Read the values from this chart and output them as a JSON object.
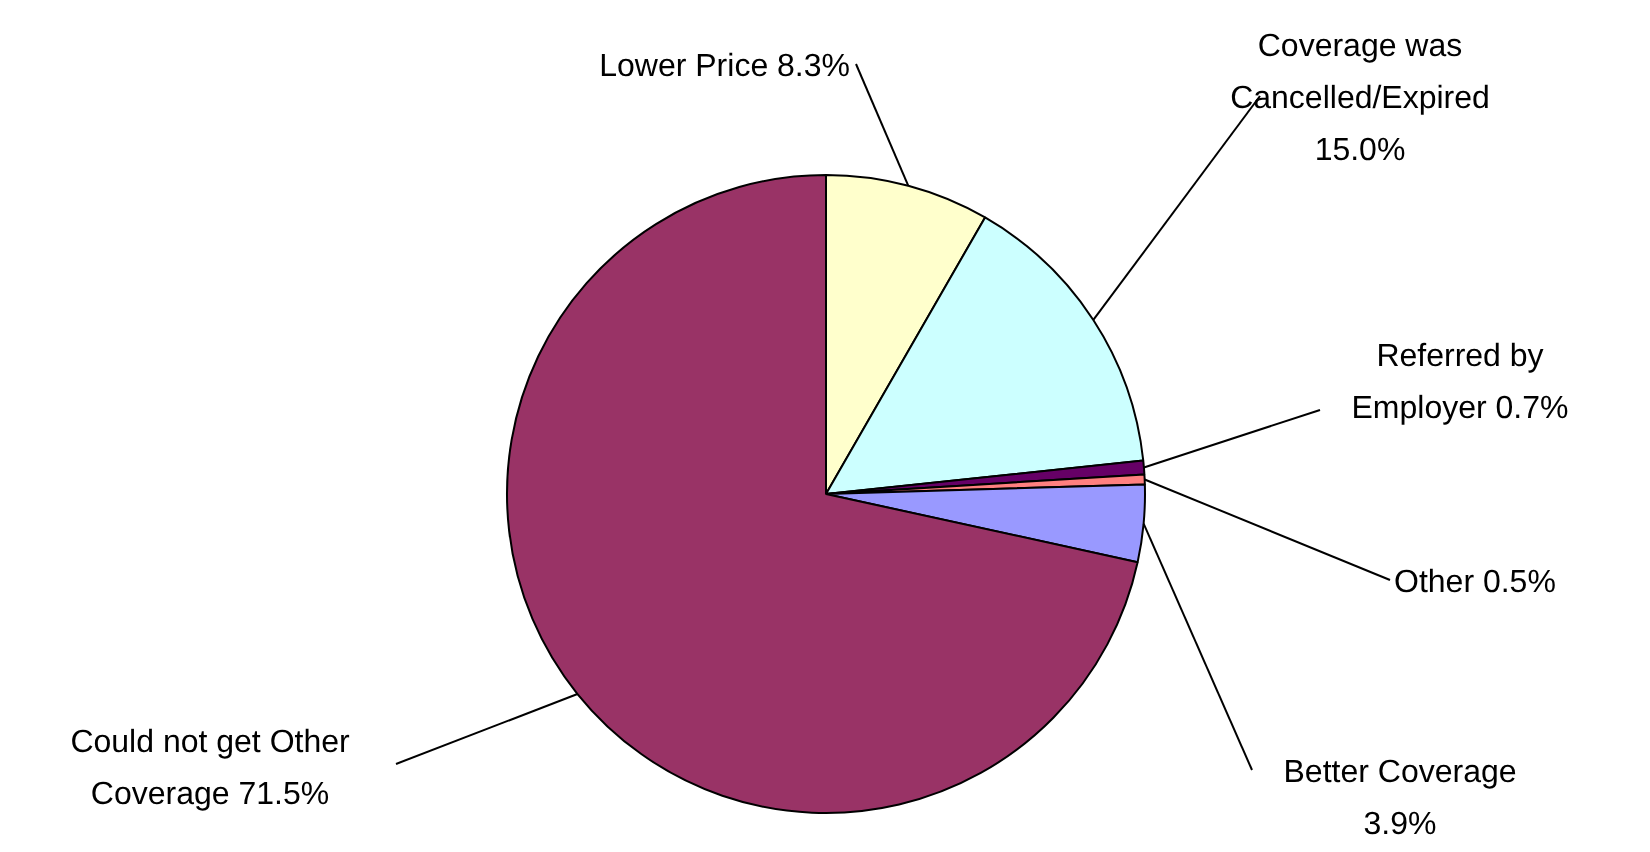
{
  "chart_data": {
    "type": "pie",
    "categories": [
      "Lower Price",
      "Coverage was Cancelled/Expired",
      "Referred by Employer",
      "Other",
      "Better Coverage",
      "Could not get Other Coverage"
    ],
    "values": [
      8.3,
      15.0,
      0.7,
      0.5,
      3.9,
      71.5
    ],
    "value_labels": [
      "8.3%",
      "15.0%",
      "0.7%",
      "0.5%",
      "3.9%",
      "71.5%"
    ],
    "colors": [
      "#ffffcc",
      "#ccffff",
      "#660066",
      "#ff8080",
      "#9999ff",
      "#993366"
    ],
    "legend": false
  }
}
